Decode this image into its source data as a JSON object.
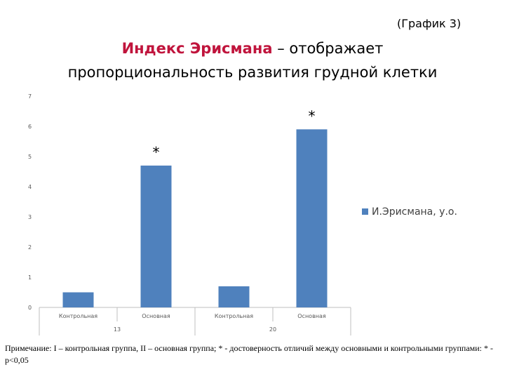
{
  "header": {
    "graph_tag": "(График 3)",
    "title_highlight": "Индекс Эрисмана",
    "title_rest_line1": " – отображает",
    "title_line2": "пропорциональность развития грудной клетки"
  },
  "chart_data": {
    "type": "bar",
    "categories": [
      "Контрольная",
      "Основная",
      "Контрольная",
      "Основная"
    ],
    "groups": [
      {
        "label": "13",
        "categories": [
          "Контрольная",
          "Основная"
        ]
      },
      {
        "label": "20",
        "categories": [
          "Контрольная",
          "Основная"
        ]
      }
    ],
    "series": [
      {
        "name": "И.Эрисмана, у.о.",
        "values": [
          0.5,
          4.7,
          0.7,
          5.9
        ],
        "color": "#4f81bd"
      }
    ],
    "significance_markers": [
      "",
      "*",
      "",
      "*"
    ],
    "ylim": [
      0,
      7
    ],
    "yticks": [
      0,
      1,
      2,
      3,
      4,
      5,
      6,
      7
    ],
    "grid": false,
    "legend_position": "right"
  },
  "footnote": "Примечание: I – контрольная группа, II – основная группа; * - достоверность отличий между основными и контрольными группами: * - р<0,05"
}
